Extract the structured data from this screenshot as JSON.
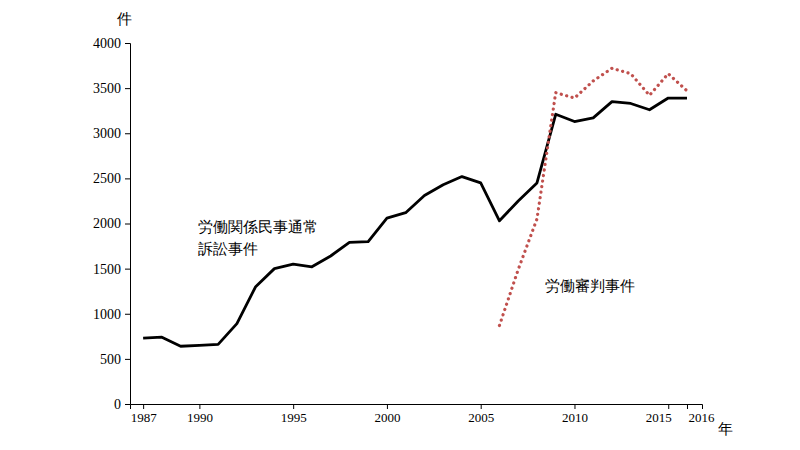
{
  "chart_data": {
    "type": "line",
    "x_label": "年",
    "y_label": "件",
    "x": [
      1987,
      1988,
      1989,
      1990,
      1991,
      1992,
      1993,
      1994,
      1995,
      1996,
      1997,
      1998,
      1999,
      2000,
      2001,
      2002,
      2003,
      2004,
      2005,
      2006,
      2007,
      2008,
      2009,
      2010,
      2011,
      2012,
      2013,
      2014,
      2015,
      2016
    ],
    "series": [
      {
        "name": "労働関係民事通常訴訟事件",
        "color": "#000000",
        "line_style": "solid",
        "values": [
          730,
          740,
          640,
          650,
          660,
          890,
          1300,
          1500,
          1550,
          1520,
          1640,
          1790,
          1800,
          2060,
          2120,
          2310,
          2430,
          2520,
          2450,
          2030,
          2250,
          2450,
          3210,
          3130,
          3170,
          3350,
          3330,
          3260,
          3390,
          3390
        ]
      },
      {
        "name": "労働審判事件",
        "color": "#c0504d",
        "line_style": "dotted",
        "values": [
          null,
          null,
          null,
          null,
          null,
          null,
          null,
          null,
          null,
          null,
          null,
          null,
          null,
          null,
          null,
          null,
          null,
          null,
          null,
          870,
          1490,
          2050,
          3450,
          3390,
          3580,
          3720,
          3660,
          3420,
          3660,
          3470
        ]
      }
    ],
    "xlim": [
      1986.3,
      2016.8
    ],
    "xticks": [
      1987,
      1990,
      1995,
      2000,
      2005,
      2010,
      2015,
      2016
    ],
    "ylim": [
      0,
      4000
    ],
    "yticks": [
      0,
      500,
      1000,
      1500,
      2000,
      2500,
      3000,
      3500,
      4000
    ],
    "grid": false
  }
}
